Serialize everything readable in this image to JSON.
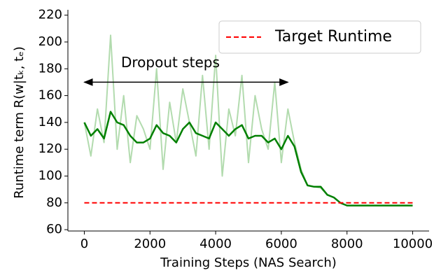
{
  "chart_data": {
    "type": "line",
    "xlabel": "Training Steps (NAS Search)",
    "ylabel": "Runtime term  R(w|tₖ, tₑ)",
    "x": [
      0,
      200,
      400,
      600,
      800,
      1000,
      1200,
      1400,
      1600,
      1800,
      2000,
      2200,
      2400,
      2600,
      2800,
      3000,
      3200,
      3400,
      3600,
      3800,
      4000,
      4200,
      4400,
      4600,
      4800,
      5000,
      5200,
      5400,
      5600,
      5800,
      6000,
      6200,
      6400,
      6600,
      6800,
      7000,
      7200,
      7400,
      7600,
      7800,
      8000,
      8200,
      8400,
      8600,
      8800,
      9000,
      9200,
      9400,
      9600,
      9800,
      10000
    ],
    "series": [
      {
        "color": "#b2dbae",
        "width": 2,
        "values": [
          140,
          115,
          150,
          125,
          205,
          120,
          160,
          110,
          145,
          135,
          120,
          180,
          105,
          155,
          125,
          165,
          140,
          115,
          175,
          120,
          190,
          100,
          150,
          130,
          175,
          110,
          160,
          135,
          120,
          170,
          110,
          150,
          125,
          105,
          93,
          92,
          91,
          86,
          84,
          80,
          78,
          78,
          78,
          78,
          78,
          78,
          78,
          78,
          78,
          78,
          78
        ]
      },
      {
        "color": "#008000",
        "width": 2.5,
        "values": [
          140,
          130,
          135,
          128,
          148,
          140,
          138,
          130,
          125,
          125,
          128,
          138,
          132,
          130,
          125,
          135,
          140,
          132,
          130,
          128,
          140,
          135,
          130,
          135,
          138,
          128,
          130,
          130,
          125,
          128,
          120,
          130,
          122,
          103,
          93,
          92,
          92,
          86,
          84,
          80,
          78,
          78,
          78,
          78,
          78,
          78,
          78,
          78,
          78,
          78,
          78
        ]
      }
    ],
    "hlines": [
      {
        "name": "Target Runtime",
        "y": 80,
        "xmin": 0,
        "xmax": 10000,
        "color": "#ff0000"
      }
    ],
    "annotation": {
      "text": "Dropout steps",
      "x_start": 0,
      "x_end": 6200,
      "y": 170
    },
    "xlim": [
      -500,
      10500
    ],
    "ylim": [
      59,
      224
    ],
    "xticks": [
      0,
      2000,
      4000,
      6000,
      8000,
      10000
    ],
    "yticks": [
      60,
      80,
      100,
      120,
      140,
      160,
      180,
      200,
      220
    ],
    "legend": "upper right"
  }
}
